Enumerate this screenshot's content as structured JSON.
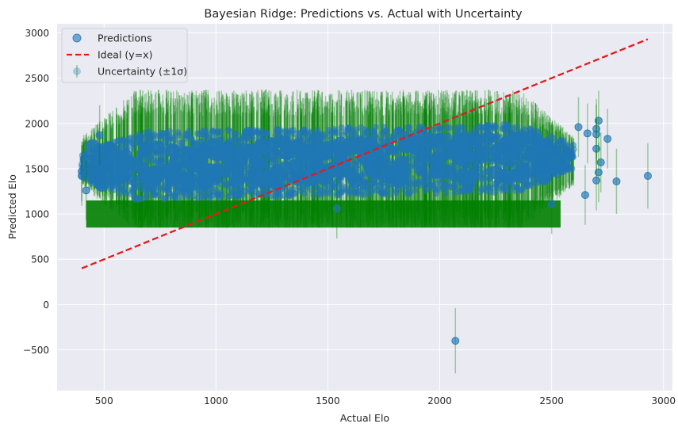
{
  "chart_data": {
    "type": "scatter",
    "title": "Bayesian Ridge: Predictions vs. Actual with Uncertainty",
    "xlabel": "Actual Elo",
    "ylabel": "Predicted Elo",
    "xlim": [
      290,
      3040
    ],
    "ylim": [
      -950,
      3100
    ],
    "xticks": [
      500,
      1000,
      1500,
      2000,
      2500,
      3000
    ],
    "yticks": [
      -500,
      0,
      500,
      1000,
      1500,
      2000,
      2500,
      3000
    ],
    "xtick_labels": [
      "500",
      "1000",
      "1500",
      "2000",
      "2500",
      "3000"
    ],
    "ytick_labels": [
      "−500",
      "0",
      "500",
      "1000",
      "1500",
      "2000",
      "2500",
      "3000"
    ],
    "grid": true,
    "legend_position": "top-left",
    "legend": [
      "Predictions",
      "Ideal (y=x)",
      "Uncertainty (±1σ)"
    ],
    "colors": {
      "predictions": "#1f77b4",
      "ideal": "#e41a1c",
      "uncertainty": "#008000",
      "background": "#eaeaf2",
      "grid": "#ffffff"
    },
    "ideal_line": {
      "x": [
        400,
        2930
      ],
      "y": [
        400,
        2930
      ]
    },
    "dense_cloud": {
      "x_range": [
        400,
        2600
      ],
      "pred_core_band": [
        1200,
        1950
      ],
      "uncertainty_band": [
        850,
        2300
      ]
    },
    "notable_points": [
      {
        "x": 480,
        "y": 1870,
        "err": 330
      },
      {
        "x": 2070,
        "y": -400,
        "err": 360
      },
      {
        "x": 2930,
        "y": 1420,
        "err": 360
      },
      {
        "x": 2790,
        "y": 1360,
        "err": 360
      },
      {
        "x": 2750,
        "y": 1830,
        "err": 330
      },
      {
        "x": 2710,
        "y": 2030,
        "err": 330
      },
      {
        "x": 2700,
        "y": 1940,
        "err": 330
      },
      {
        "x": 2700,
        "y": 1880,
        "err": 330
      },
      {
        "x": 2700,
        "y": 1720,
        "err": 330
      },
      {
        "x": 2720,
        "y": 1570,
        "err": 330
      },
      {
        "x": 2710,
        "y": 1460,
        "err": 330
      },
      {
        "x": 2700,
        "y": 1370,
        "err": 330
      },
      {
        "x": 2650,
        "y": 1210,
        "err": 330
      },
      {
        "x": 2500,
        "y": 1110,
        "err": 330
      },
      {
        "x": 2660,
        "y": 1890,
        "err": 330
      },
      {
        "x": 2620,
        "y": 1960,
        "err": 330
      },
      {
        "x": 1540,
        "y": 1060,
        "err": 330
      },
      {
        "x": 400,
        "y": 1470,
        "err": 330
      },
      {
        "x": 400,
        "y": 1420,
        "err": 330
      },
      {
        "x": 420,
        "y": 1260,
        "err": 330
      }
    ]
  }
}
